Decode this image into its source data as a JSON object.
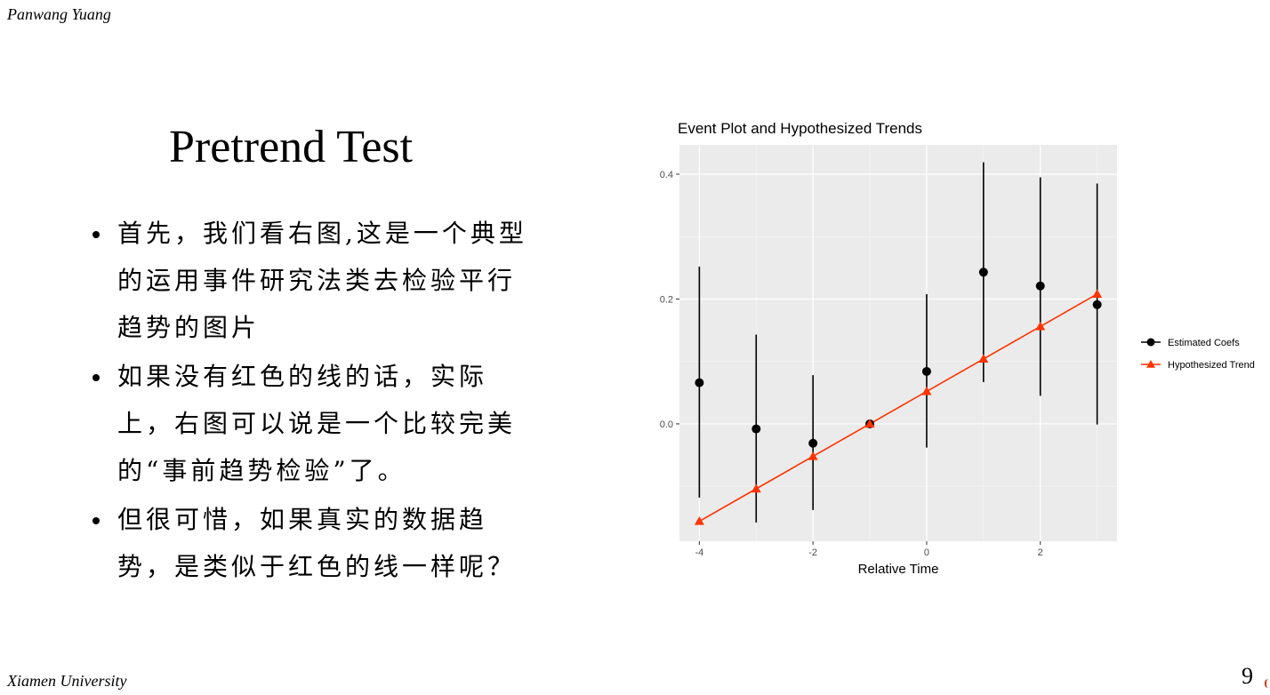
{
  "header": {
    "author": "Panwang Yuang"
  },
  "footer": {
    "institution": "Xiamen University",
    "page_number": "9"
  },
  "slide": {
    "title": "Pretrend Test",
    "bullets": [
      "首先，我们看右图,这是一个典型的运用事件研究法类去检验平行趋势的图片",
      "如果没有红色的线的话，实际上，右图可以说是一个比较完美的“事前趋势检验”了。",
      "但很可惜，如果真实的数据趋势，是类似于红色的线一样呢？"
    ]
  },
  "chart_data": {
    "type": "scatter",
    "title": "Event Plot and Hypothesized Trends",
    "xlabel": "Relative Time",
    "ylabel": "",
    "x_ticks": [
      -4,
      -2,
      0,
      2
    ],
    "x_tick_labels": [
      "-4",
      "-2",
      "0",
      "2"
    ],
    "y_ticks": [
      0.0,
      0.2,
      0.4
    ],
    "y_tick_labels": [
      "0.0",
      "0.2",
      "0.4"
    ],
    "xlim": [
      -4.35,
      3.35
    ],
    "ylim": [
      -0.188,
      0.447
    ],
    "grid": true,
    "legend_position": "right",
    "series": [
      {
        "name": "Estimated Coefs",
        "color": "#000000",
        "marker": "circle",
        "x": [
          -4,
          -3,
          -2,
          -1,
          0,
          1,
          2,
          3
        ],
        "y": [
          0.066,
          -0.008,
          -0.031,
          0.0,
          0.084,
          0.243,
          0.221,
          0.191
        ],
        "ci_low": [
          -0.118,
          -0.158,
          -0.138,
          0.0,
          -0.038,
          0.067,
          0.045,
          -0.001
        ],
        "ci_high": [
          0.252,
          0.143,
          0.078,
          0.0,
          0.208,
          0.419,
          0.395,
          0.385
        ]
      },
      {
        "name": "Hypothesized Trend",
        "color": "#ff3300",
        "marker": "triangle",
        "x": [
          -4,
          -3,
          -2,
          -1,
          0,
          1,
          2,
          3
        ],
        "y": [
          -0.156,
          -0.104,
          -0.052,
          0.0,
          0.052,
          0.104,
          0.156,
          0.208
        ]
      }
    ]
  }
}
